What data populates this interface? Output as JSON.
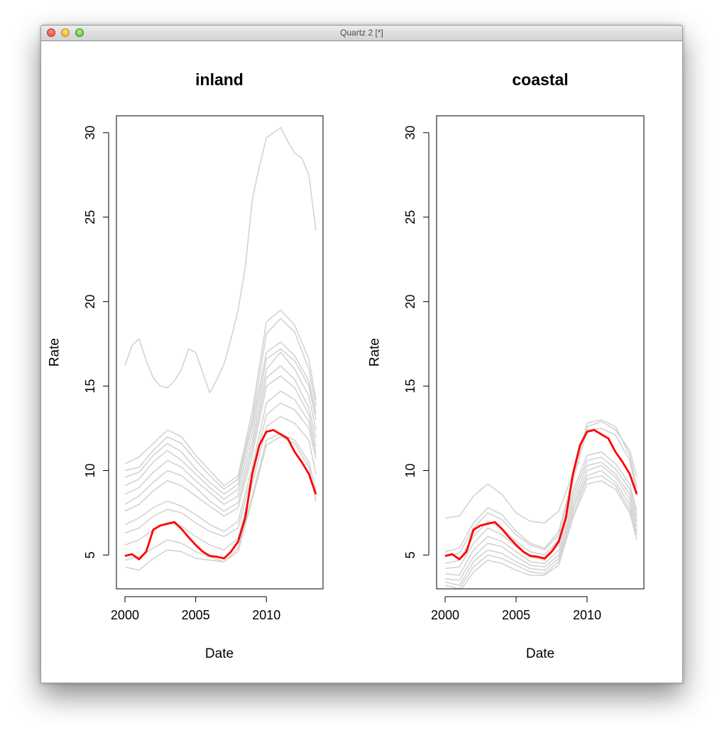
{
  "window": {
    "title": "Quartz 2 [*]"
  },
  "chart_data": [
    {
      "type": "line",
      "title": "inland",
      "xlabel": "Date",
      "ylabel": "Rate",
      "xlim": [
        1999.4,
        2014.0
      ],
      "ylim": [
        3.0,
        31.0
      ],
      "xticks": [
        2000,
        2005,
        2010
      ],
      "yticks": [
        5,
        10,
        15,
        20,
        25,
        30
      ],
      "grid": false,
      "legend": "none",
      "colors": {
        "background_series": "#d3d3d3",
        "highlight_series": "#ff0000"
      },
      "background_series": [
        {
          "x": [
            2000,
            2000.5,
            2001,
            2001.5,
            2002,
            2002.5,
            2003,
            2003.5,
            2004,
            2004.5,
            2005,
            2005.5,
            2006,
            2006.5,
            2007,
            2007.5,
            2008,
            2008.5,
            2009,
            2009.5,
            2010,
            2010.5,
            2011,
            2011.5,
            2012,
            2012.5,
            2013,
            2013.5
          ],
          "y": [
            16.2,
            17.4,
            17.8,
            16.5,
            15.5,
            15.0,
            14.9,
            15.3,
            16.0,
            17.2,
            17.0,
            15.8,
            14.6,
            15.4,
            16.3,
            17.8,
            19.5,
            22.0,
            26.0,
            28.0,
            29.7,
            30.0,
            30.3,
            29.5,
            28.8,
            28.5,
            27.5,
            24.2
          ]
        },
        {
          "x": [
            2000,
            2001,
            2002,
            2003,
            2004,
            2005,
            2006,
            2007,
            2008,
            2009,
            2010,
            2011,
            2012,
            2013,
            2013.5
          ],
          "y": [
            10.4,
            10.8,
            11.6,
            12.4,
            12.0,
            10.9,
            10.0,
            9.1,
            9.7,
            13.5,
            18.8,
            19.5,
            18.6,
            16.6,
            14.2
          ]
        },
        {
          "x": [
            2000,
            2001,
            2002,
            2003,
            2004,
            2005,
            2006,
            2007,
            2008,
            2009,
            2010,
            2011,
            2012,
            2013,
            2013.5
          ],
          "y": [
            10.0,
            10.2,
            11.2,
            12.0,
            11.6,
            10.6,
            9.7,
            8.9,
            9.5,
            13.0,
            18.1,
            19.0,
            18.2,
            16.0,
            13.8
          ]
        },
        {
          "x": [
            2000,
            2001,
            2002,
            2003,
            2004,
            2005,
            2006,
            2007,
            2008,
            2009,
            2010,
            2011,
            2012,
            2013,
            2013.5
          ],
          "y": [
            9.6,
            9.9,
            10.9,
            11.6,
            11.1,
            10.1,
            9.3,
            8.6,
            9.2,
            12.7,
            17.0,
            17.6,
            16.8,
            15.3,
            13.4
          ]
        },
        {
          "x": [
            2000,
            2001,
            2002,
            2003,
            2004,
            2005,
            2006,
            2007,
            2008,
            2009,
            2010,
            2011,
            2012,
            2013,
            2013.5
          ],
          "y": [
            9.1,
            9.5,
            10.5,
            11.2,
            10.6,
            9.8,
            9.0,
            8.3,
            8.9,
            12.2,
            16.6,
            17.2,
            16.5,
            15.0,
            13.0
          ]
        },
        {
          "x": [
            2000,
            2001,
            2002,
            2003,
            2004,
            2005,
            2006,
            2007,
            2008,
            2009,
            2010,
            2011,
            2012,
            2013,
            2013.5
          ],
          "y": [
            8.6,
            9.0,
            9.9,
            10.6,
            10.2,
            9.4,
            8.7,
            8.0,
            8.5,
            11.7,
            16.0,
            17.0,
            16.0,
            14.4,
            12.4
          ]
        },
        {
          "x": [
            2000,
            2001,
            2002,
            2003,
            2004,
            2005,
            2006,
            2007,
            2008,
            2009,
            2010,
            2011,
            2012,
            2013,
            2013.5
          ],
          "y": [
            8.0,
            8.5,
            9.3,
            10.0,
            9.7,
            9.0,
            8.2,
            7.6,
            8.1,
            11.3,
            15.5,
            16.2,
            15.4,
            13.7,
            11.9
          ]
        },
        {
          "x": [
            2000,
            2001,
            2002,
            2003,
            2004,
            2005,
            2006,
            2007,
            2008,
            2009,
            2010,
            2011,
            2012,
            2013,
            2013.5
          ],
          "y": [
            7.6,
            8.0,
            8.8,
            9.4,
            9.1,
            8.5,
            7.9,
            7.3,
            7.8,
            10.9,
            15.0,
            15.6,
            14.9,
            13.3,
            11.4
          ]
        },
        {
          "x": [
            2000,
            2001,
            2002,
            2003,
            2004,
            2005,
            2006,
            2007,
            2008,
            2009,
            2010,
            2011,
            2012,
            2013,
            2013.5
          ],
          "y": [
            6.8,
            7.2,
            7.8,
            8.2,
            7.9,
            7.4,
            6.8,
            6.4,
            7.0,
            10.2,
            14.0,
            14.7,
            14.2,
            12.9,
            11.0
          ]
        },
        {
          "x": [
            2000,
            2001,
            2002,
            2003,
            2004,
            2005,
            2006,
            2007,
            2008,
            2009,
            2010,
            2011,
            2012,
            2013,
            2013.5
          ],
          "y": [
            6.3,
            6.6,
            7.3,
            7.7,
            7.5,
            6.9,
            6.4,
            6.1,
            6.6,
            9.8,
            13.3,
            14.0,
            13.6,
            12.5,
            10.7
          ]
        },
        {
          "x": [
            2000,
            2001,
            2002,
            2003,
            2004,
            2005,
            2006,
            2007,
            2008,
            2009,
            2010,
            2011,
            2012,
            2013,
            2013.5
          ],
          "y": [
            5.6,
            5.9,
            6.5,
            6.9,
            6.7,
            6.1,
            5.6,
            5.3,
            6.0,
            9.2,
            12.6,
            13.2,
            12.8,
            11.8,
            9.8
          ]
        },
        {
          "x": [
            2000,
            2001,
            2002,
            2003,
            2004,
            2005,
            2006,
            2007,
            2008,
            2009,
            2010,
            2011,
            2012,
            2013,
            2013.5
          ],
          "y": [
            4.7,
            4.9,
            5.4,
            5.9,
            5.7,
            5.2,
            4.9,
            4.6,
            5.4,
            8.5,
            11.8,
            12.2,
            11.8,
            10.5,
            8.8
          ]
        },
        {
          "x": [
            2000,
            2001,
            2002,
            2003,
            2004,
            2005,
            2006,
            2007,
            2008,
            2009,
            2010,
            2011,
            2012,
            2013,
            2013.5
          ],
          "y": [
            4.3,
            4.1,
            4.8,
            5.3,
            5.2,
            4.8,
            4.7,
            4.6,
            5.2,
            8.3,
            11.5,
            12.0,
            11.6,
            10.2,
            8.2
          ]
        }
      ],
      "highlight_series": {
        "x": [
          2000,
          2000.5,
          2001,
          2001.5,
          2002,
          2002.5,
          2003,
          2003.5,
          2004,
          2004.5,
          2005,
          2005.5,
          2006,
          2006.5,
          2007,
          2007.5,
          2008,
          2008.5,
          2009,
          2009.5,
          2010,
          2010.5,
          2011,
          2011.5,
          2012,
          2012.5,
          2013,
          2013.5
        ],
        "y": [
          4.95,
          5.05,
          4.75,
          5.2,
          6.5,
          6.75,
          6.85,
          6.95,
          6.55,
          6.05,
          5.6,
          5.2,
          4.95,
          4.9,
          4.8,
          5.2,
          5.8,
          7.2,
          9.8,
          11.5,
          12.3,
          12.4,
          12.15,
          11.9,
          11.1,
          10.5,
          9.8,
          8.6
        ]
      }
    },
    {
      "type": "line",
      "title": "coastal",
      "xlabel": "Date",
      "ylabel": "Rate",
      "xlim": [
        1999.4,
        2014.0
      ],
      "ylim": [
        3.0,
        31.0
      ],
      "xticks": [
        2000,
        2005,
        2010
      ],
      "yticks": [
        5,
        10,
        15,
        20,
        25,
        30
      ],
      "grid": false,
      "legend": "none",
      "colors": {
        "background_series": "#d3d3d3",
        "highlight_series": "#ff0000"
      },
      "background_series": [
        {
          "x": [
            2000,
            2001,
            2002,
            2003,
            2004,
            2005,
            2006,
            2007,
            2008,
            2009,
            2010,
            2011,
            2012,
            2013,
            2013.5
          ],
          "y": [
            7.2,
            7.3,
            8.5,
            9.2,
            8.6,
            7.5,
            7.0,
            6.9,
            7.6,
            9.8,
            12.6,
            12.9,
            12.4,
            11.2,
            9.6
          ]
        },
        {
          "x": [
            2000,
            2001,
            2002,
            2003,
            2004,
            2005,
            2006,
            2007,
            2008,
            2009,
            2010,
            2011,
            2012,
            2013,
            2013.5
          ],
          "y": [
            5.2,
            5.4,
            6.9,
            7.8,
            7.4,
            6.4,
            5.7,
            5.4,
            6.4,
            9.6,
            12.8,
            13.0,
            12.6,
            10.9,
            9.0
          ]
        },
        {
          "x": [
            2000,
            2001,
            2002,
            2003,
            2004,
            2005,
            2006,
            2007,
            2008,
            2009,
            2010,
            2011,
            2012,
            2013,
            2013.5
          ],
          "y": [
            4.9,
            5.1,
            6.6,
            7.5,
            7.1,
            6.2,
            5.6,
            5.3,
            6.2,
            9.4,
            12.4,
            12.5,
            12.1,
            10.6,
            8.7
          ]
        },
        {
          "x": [
            2000,
            2001,
            2002,
            2003,
            2004,
            2005,
            2006,
            2007,
            2008,
            2009,
            2010,
            2011,
            2012,
            2013,
            2013.5
          ],
          "y": [
            4.5,
            4.7,
            6.1,
            7.0,
            6.6,
            5.8,
            5.2,
            5.0,
            5.9,
            8.8,
            10.9,
            11.1,
            10.4,
            9.2,
            7.6
          ]
        },
        {
          "x": [
            2000,
            2001,
            2002,
            2003,
            2004,
            2005,
            2006,
            2007,
            2008,
            2009,
            2010,
            2011,
            2012,
            2013,
            2013.5
          ],
          "y": [
            4.2,
            4.3,
            5.7,
            6.6,
            6.2,
            5.5,
            4.9,
            4.7,
            5.6,
            8.5,
            10.6,
            10.8,
            10.1,
            8.9,
            7.3
          ]
        },
        {
          "x": [
            2000,
            2001,
            2002,
            2003,
            2004,
            2005,
            2006,
            2007,
            2008,
            2009,
            2010,
            2011,
            2012,
            2013,
            2013.5
          ],
          "y": [
            3.9,
            3.8,
            5.3,
            6.1,
            5.8,
            5.2,
            4.6,
            4.5,
            5.3,
            8.2,
            10.3,
            10.5,
            9.8,
            8.6,
            7.0
          ]
        },
        {
          "x": [
            2000,
            2001,
            2002,
            2003,
            2004,
            2005,
            2006,
            2007,
            2008,
            2009,
            2010,
            2011,
            2012,
            2013,
            2013.5
          ],
          "y": [
            3.6,
            3.5,
            4.9,
            5.7,
            5.5,
            4.9,
            4.4,
            4.3,
            5.0,
            7.9,
            10.0,
            10.3,
            9.6,
            8.3,
            6.7
          ]
        },
        {
          "x": [
            2000,
            2001,
            2002,
            2003,
            2004,
            2005,
            2006,
            2007,
            2008,
            2009,
            2010,
            2011,
            2012,
            2013,
            2013.5
          ],
          "y": [
            3.4,
            3.2,
            4.6,
            5.3,
            5.1,
            4.6,
            4.2,
            4.1,
            4.8,
            7.7,
            9.7,
            10.0,
            9.3,
            8.0,
            6.4
          ]
        },
        {
          "x": [
            2000,
            2001,
            2002,
            2003,
            2004,
            2005,
            2006,
            2007,
            2008,
            2009,
            2010,
            2011,
            2012,
            2013,
            2013.5
          ],
          "y": [
            3.2,
            3.0,
            4.3,
            5.0,
            4.8,
            4.4,
            4.0,
            3.9,
            4.6,
            7.4,
            9.5,
            9.7,
            9.1,
            7.7,
            6.2
          ]
        },
        {
          "x": [
            2000,
            2001,
            2002,
            2003,
            2004,
            2005,
            2006,
            2007,
            2008,
            2009,
            2010,
            2011,
            2012,
            2013,
            2013.5
          ],
          "y": [
            3.0,
            2.8,
            4.0,
            4.7,
            4.5,
            4.1,
            3.8,
            3.8,
            4.4,
            7.2,
            9.2,
            9.4,
            8.9,
            7.5,
            5.9
          ]
        }
      ],
      "highlight_series": {
        "x": [
          2000,
          2000.5,
          2001,
          2001.5,
          2002,
          2002.5,
          2003,
          2003.5,
          2004,
          2004.5,
          2005,
          2005.5,
          2006,
          2006.5,
          2007,
          2007.5,
          2008,
          2008.5,
          2009,
          2009.5,
          2010,
          2010.5,
          2011,
          2011.5,
          2012,
          2012.5,
          2013,
          2013.5
        ],
        "y": [
          4.95,
          5.05,
          4.75,
          5.2,
          6.5,
          6.75,
          6.85,
          6.95,
          6.55,
          6.05,
          5.6,
          5.2,
          4.95,
          4.9,
          4.8,
          5.2,
          5.8,
          7.2,
          9.8,
          11.5,
          12.3,
          12.4,
          12.15,
          11.9,
          11.1,
          10.5,
          9.8,
          8.6
        ]
      }
    }
  ]
}
